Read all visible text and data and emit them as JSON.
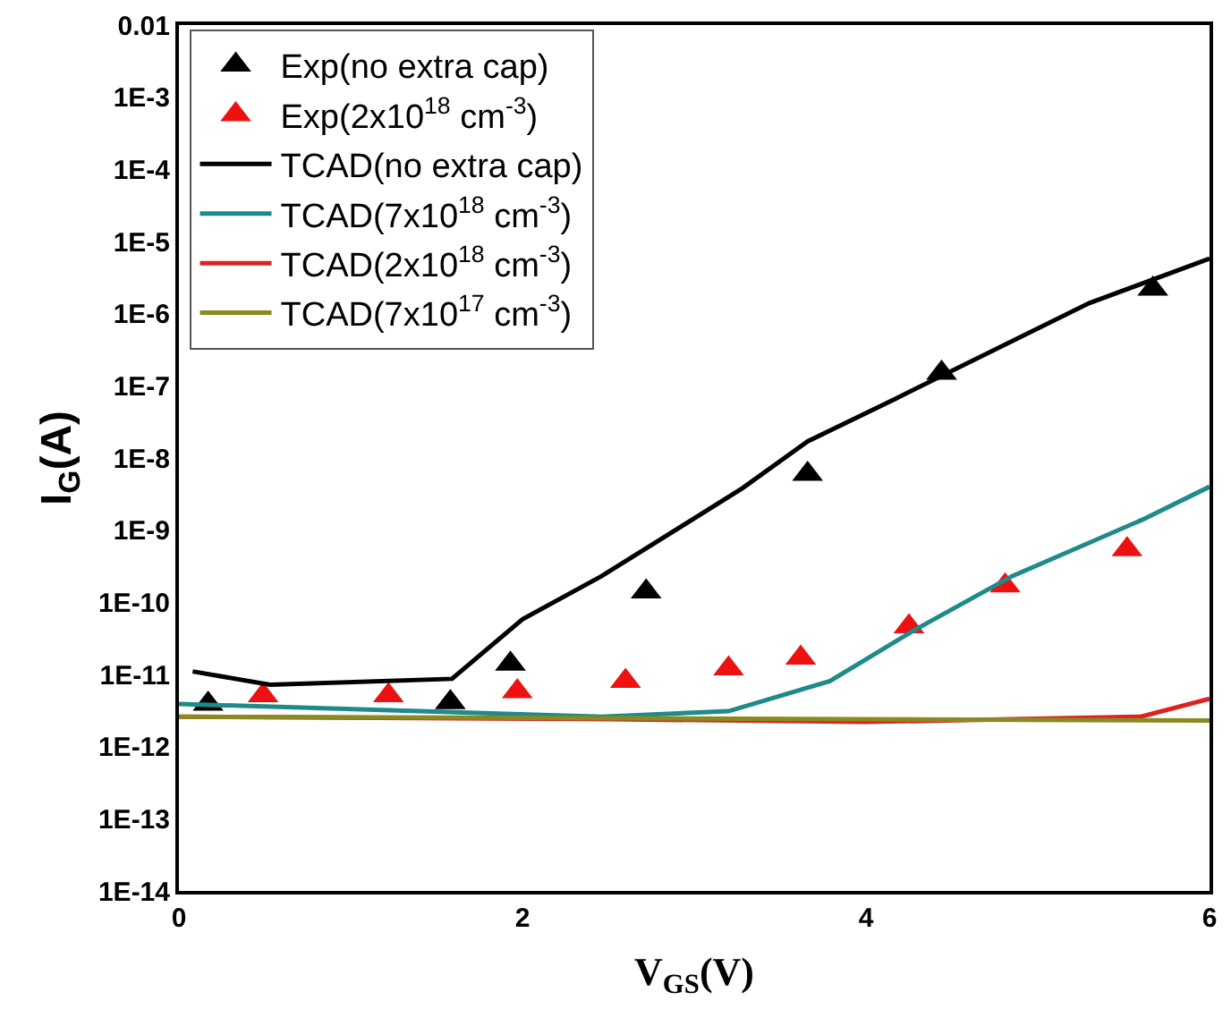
{
  "chart_data": {
    "type": "line",
    "xlabel": "V$_{GS}$(V)",
    "ylabel": "I$_{G}$(A)",
    "log": "y",
    "grid": false,
    "legend": "top left",
    "xlim": [
      0,
      6
    ],
    "xticks": [
      0,
      2,
      4,
      6
    ],
    "ylim": [
      1e-14,
      0.01
    ],
    "yticks": [
      {
        "value": 1e-14,
        "label": "1E-14"
      },
      {
        "value": 1e-13,
        "label": "1E-13"
      },
      {
        "value": 1e-12,
        "label": "1E-12"
      },
      {
        "value": 1e-11,
        "label": "1E-11"
      },
      {
        "value": 1e-10,
        "label": "1E-10"
      },
      {
        "value": 1e-09,
        "label": "1E-9"
      },
      {
        "value": 1e-08,
        "label": "1E-8"
      },
      {
        "value": 1e-07,
        "label": "1E-7"
      },
      {
        "value": 1e-06,
        "label": "1E-6"
      },
      {
        "value": 1e-05,
        "label": "1E-5"
      },
      {
        "value": 0.0001,
        "label": "1E-4"
      },
      {
        "value": 0.001,
        "label": "1E-3"
      },
      {
        "value": 0.01,
        "label": "0.01"
      }
    ],
    "series": [
      {
        "name": "Exp(no extra cap)",
        "type": "scatter",
        "marker": "triangle",
        "color": "#000000",
        "x": [
          0.17,
          1.58,
          1.93,
          2.72,
          3.66,
          4.44,
          5.67
        ],
        "values": [
          3.9e-12,
          4.1e-12,
          1.4e-11,
          1.4e-10,
          6e-09,
          1.5e-07,
          2.2e-06
        ]
      },
      {
        "name": "Exp(2x10$^{18}$ cm$^{-3}$)",
        "type": "scatter",
        "marker": "triangle",
        "color": "#ee1111",
        "x": [
          0.49,
          1.22,
          1.97,
          2.6,
          3.2,
          3.62,
          4.25,
          4.81,
          5.52
        ],
        "values": [
          5.1e-12,
          5.1e-12,
          5.8e-12,
          8.1e-12,
          1.2e-11,
          1.7e-11,
          4.6e-11,
          1.7e-10,
          5.4e-10
        ]
      },
      {
        "name": "TCAD(no extra cap)",
        "color": "#000000",
        "x": [
          0.08,
          0.53,
          1.59,
          2.0,
          2.46,
          3.28,
          3.66,
          4.17,
          5.3,
          6
        ],
        "values": [
          1.1e-11,
          7.2e-12,
          8.7e-12,
          5.8e-11,
          2.3e-10,
          3.8e-09,
          1.7e-08,
          6.6e-08,
          1.4e-06,
          5.8e-06
        ]
      },
      {
        "name": "TCAD(7x10$^{18}$ cm$^{-3}$)",
        "color": "#1f8a8a",
        "x": [
          0,
          2.46,
          3.2,
          3.79,
          4.28,
          4.85,
          5.61,
          6
        ],
        "values": [
          3.9e-12,
          2.6e-12,
          3.1e-12,
          8.1e-12,
          4.1e-11,
          2.3e-10,
          1.4e-09,
          4e-09
        ]
      },
      {
        "name": "TCAD(2x10$^{18}$ cm$^{-3}$)",
        "color": "#dd2222",
        "x": [
          0,
          2.5,
          4,
          5.6,
          6
        ],
        "values": [
          2.6e-12,
          2.4e-12,
          2.2e-12,
          2.6e-12,
          4.6e-12
        ]
      },
      {
        "name": "TCAD(7x10$^{17}$ cm$^{-3}$)",
        "color": "#8a8a20",
        "x": [
          0,
          6
        ],
        "values": [
          2.6e-12,
          2.3e-12
        ]
      }
    ]
  }
}
